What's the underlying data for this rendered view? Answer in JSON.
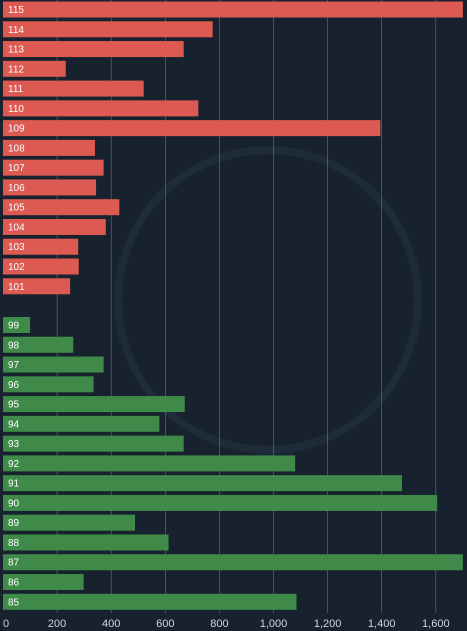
{
  "chart_data": {
    "type": "bar",
    "orientation": "horizontal",
    "xlim": [
      0,
      1700
    ],
    "grid": true,
    "x_ticks": [
      "0",
      "200",
      "400",
      "600",
      "800",
      "1,000",
      "1,200",
      "1,400",
      "1,600"
    ],
    "colors": {
      "upper": "#dd5a52",
      "lower": "#3f8a48",
      "background": "#17222e",
      "grid": "#7e8893"
    },
    "series": [
      {
        "color": "#dd5a52",
        "categories": [
          "115",
          "114",
          "113",
          "112",
          "111",
          "110",
          "109",
          "108",
          "107",
          "106",
          "105",
          "104",
          "103",
          "102",
          "101"
        ],
        "values": [
          1700,
          775,
          668,
          232,
          520,
          722,
          1395,
          340,
          372,
          344,
          430,
          380,
          278,
          280,
          248
        ]
      },
      {
        "color": "#3f8a48",
        "categories": [
          "99",
          "98",
          "97",
          "96",
          "95",
          "94",
          "93",
          "92",
          "91",
          "90",
          "89",
          "88",
          "87",
          "86",
          "85"
        ],
        "values": [
          100,
          260,
          372,
          335,
          672,
          578,
          668,
          1080,
          1475,
          1605,
          488,
          612,
          1700,
          298,
          1085
        ]
      }
    ]
  }
}
